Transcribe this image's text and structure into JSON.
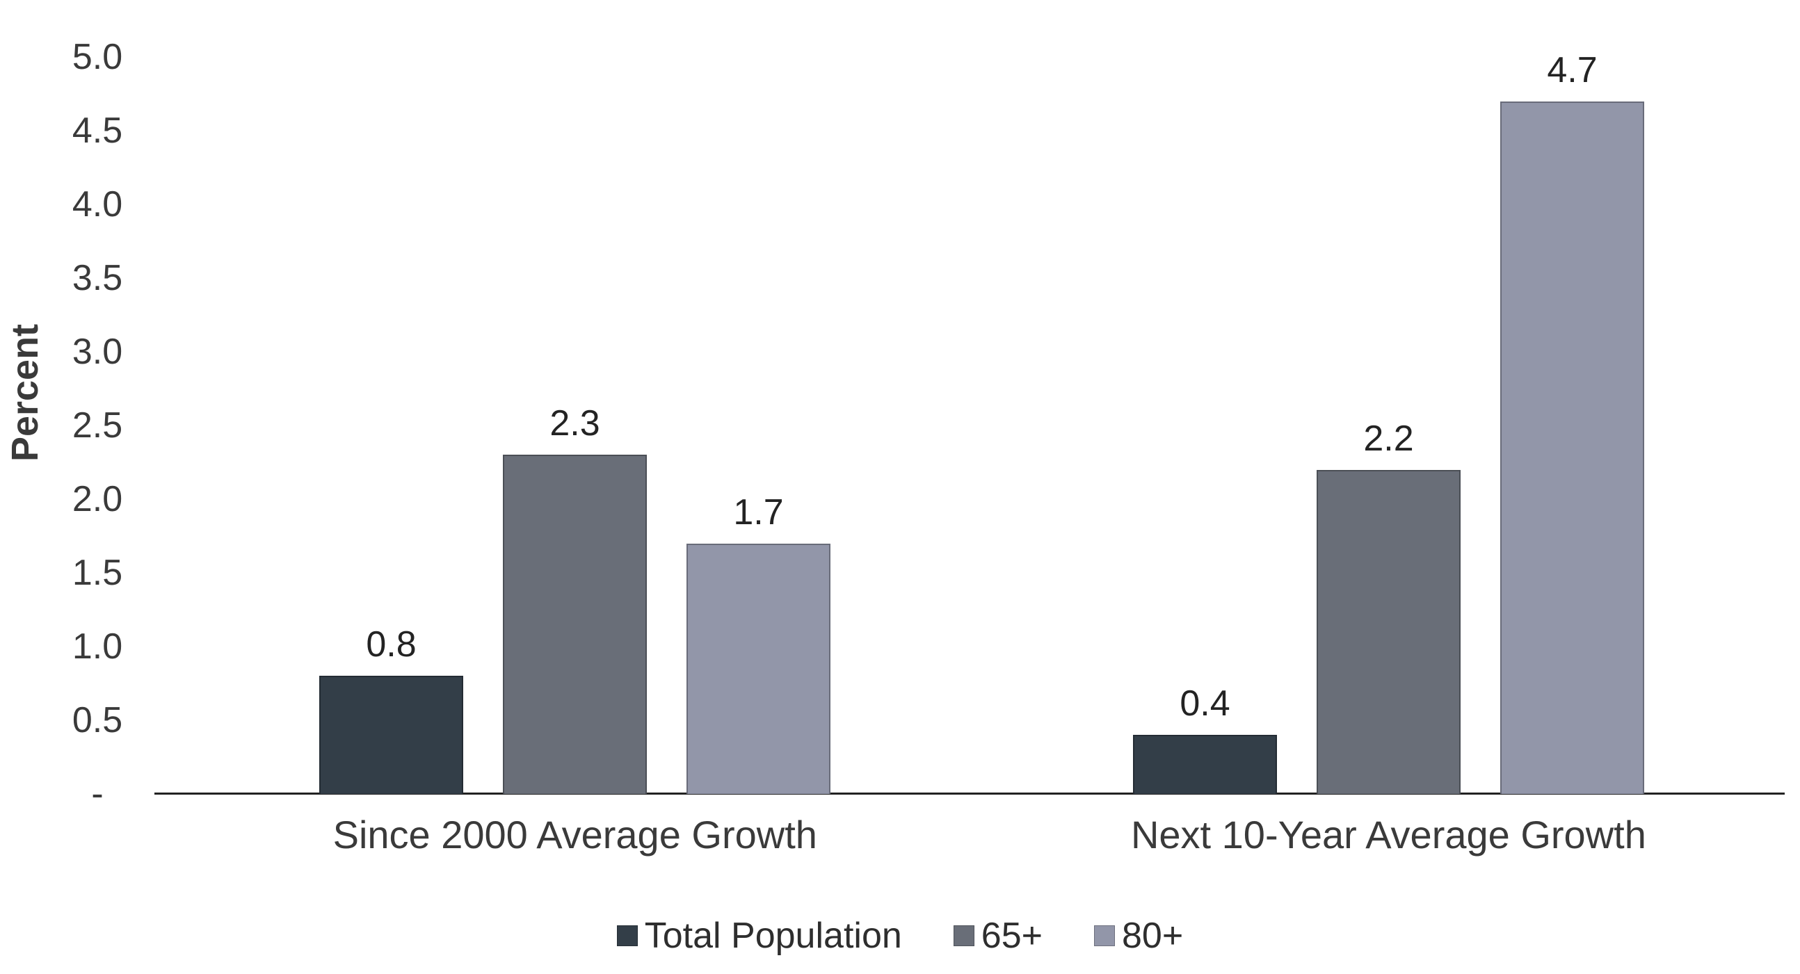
{
  "chart_data": {
    "type": "bar",
    "title": "",
    "ylabel": "Percent",
    "xlabel": "",
    "ylim": [
      0,
      5.0
    ],
    "y_tick_step": 0.5,
    "y_tick_labels": [
      "5.0",
      "4.5",
      "4.0",
      "3.5",
      "3.0",
      "2.5",
      "2.0",
      "1.5",
      "1.0",
      "0.5",
      "-"
    ],
    "grid": false,
    "legend_position": "bottom",
    "categories": [
      "Since 2000 Average Growth",
      "Next 10-Year Average Growth"
    ],
    "series": [
      {
        "name": "Total Population",
        "color": "#333E48",
        "values": [
          0.8,
          0.4
        ]
      },
      {
        "name": "65+",
        "color": "#696E78",
        "values": [
          2.3,
          2.2
        ]
      },
      {
        "name": "80+",
        "color": "#9296A9",
        "values": [
          1.7,
          4.7
        ]
      }
    ]
  },
  "colors": {
    "background": "#FFFFFF",
    "axis_line": "#222222",
    "tick_text": "#3A3A3A",
    "value_text": "#232323",
    "category_text": "#3A3A3A",
    "legend_text": "#2E2E2E"
  }
}
